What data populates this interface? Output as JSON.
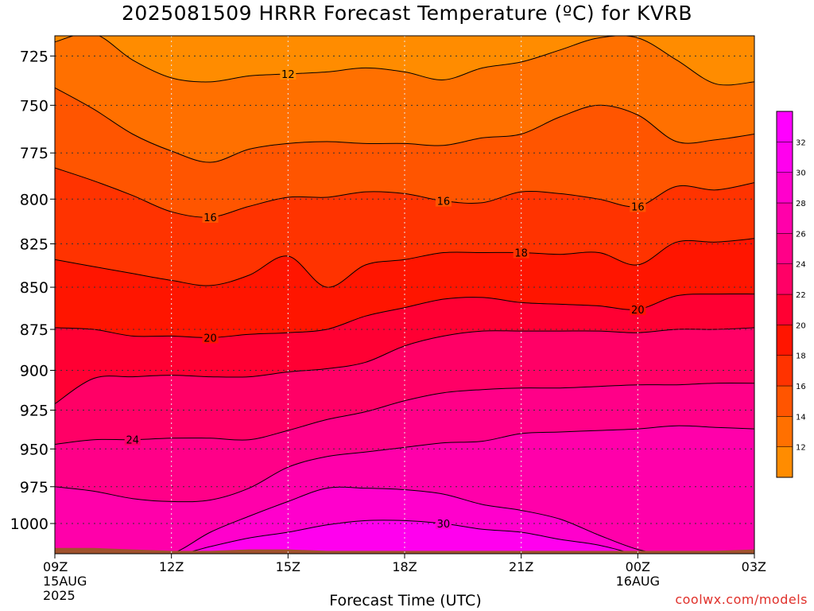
{
  "title": "2025081509 HRRR Forecast Temperature (ºC) for KVRB",
  "credit": "coolwx.com/models",
  "chart_data": {
    "type": "heatmap",
    "title": "2025081509 HRRR Forecast Temperature (ºC) for KVRB",
    "xlabel": "Forecast Time (UTC)",
    "ylabel": "",
    "x_hours": [
      0,
      1,
      2,
      3,
      4,
      5,
      6,
      7,
      8,
      9,
      10,
      11,
      12,
      13,
      14,
      15,
      16,
      17,
      18
    ],
    "x_range": [
      0,
      18
    ],
    "x_ticks": [
      {
        "hour": 0,
        "label": "09Z",
        "sub": [
          "15AUG",
          "2025"
        ]
      },
      {
        "hour": 3,
        "label": "12Z",
        "sub": []
      },
      {
        "hour": 6,
        "label": "15Z",
        "sub": []
      },
      {
        "hour": 9,
        "label": "18Z",
        "sub": []
      },
      {
        "hour": 12,
        "label": "21Z",
        "sub": []
      },
      {
        "hour": 15,
        "label": "00Z",
        "sub": [
          "16AUG"
        ]
      },
      {
        "hour": 18,
        "label": "03Z",
        "sub": []
      }
    ],
    "y_axis": {
      "units": "hPa",
      "range": [
        1021,
        715
      ],
      "ticks": [
        725,
        750,
        775,
        800,
        825,
        850,
        875,
        900,
        925,
        950,
        975,
        1000
      ],
      "log_scale": true
    },
    "grid": true,
    "surface_pressure": [
      1017,
      1017,
      1018,
      1019,
      1019,
      1018,
      1018,
      1019,
      1019,
      1019,
      1019,
      1019,
      1019,
      1019,
      1019,
      1019,
      1019,
      1019,
      1018
    ],
    "contour_levels": [
      12,
      14,
      16,
      18,
      20,
      22,
      24,
      26,
      28,
      30
    ],
    "contours": [
      {
        "level": 30,
        "p": [
          1038,
          1032,
          1027,
          1023,
          1016,
          1010,
          1006,
          1001,
          998,
          998,
          1000,
          1004,
          1006,
          1011,
          1015,
          1022,
          1030,
          1035,
          1040
        ]
      },
      {
        "level": 28,
        "p": [
          1030,
          1026,
          1023,
          1021,
          1006,
          995,
          985,
          976,
          976,
          977,
          980,
          987,
          991,
          997,
          1008,
          1018,
          1023,
          1028,
          1033
        ]
      },
      {
        "level": 26,
        "p": [
          975,
          978,
          983,
          985,
          984,
          976,
          962,
          955,
          952,
          949,
          946,
          945,
          940,
          939,
          938,
          937,
          935,
          936,
          937
        ]
      },
      {
        "level": 24,
        "p": [
          947,
          944,
          944,
          943,
          943,
          944,
          938,
          931,
          926,
          919,
          914,
          912,
          911,
          911,
          910,
          909,
          909,
          908,
          908
        ]
      },
      {
        "level": 22,
        "p": [
          921,
          905,
          904,
          903,
          904,
          904,
          901,
          899,
          895,
          885,
          879,
          876,
          876,
          876,
          876,
          877,
          875,
          875,
          874
        ]
      },
      {
        "level": 20,
        "p": [
          874,
          875,
          879,
          879,
          880,
          878,
          877,
          875,
          867,
          862,
          857,
          856,
          859,
          860,
          861,
          863,
          855,
          854,
          854
        ]
      },
      {
        "level": 18,
        "p": [
          834,
          838,
          842,
          846,
          849,
          843,
          832,
          850,
          837,
          834,
          830,
          830,
          830,
          831,
          830,
          837,
          824,
          824,
          822
        ]
      },
      {
        "level": 16,
        "p": [
          783,
          790,
          798,
          807,
          810,
          804,
          799,
          799,
          796,
          797,
          801,
          802,
          796,
          797,
          800,
          804,
          793,
          795,
          791
        ]
      },
      {
        "level": 14,
        "p": [
          741,
          752,
          765,
          774,
          780,
          773,
          770,
          769,
          770,
          770,
          771,
          767,
          765,
          756,
          750,
          755,
          769,
          768,
          765
        ]
      },
      {
        "level": 12,
        "p": [
          718,
          714,
          727,
          736,
          738,
          735,
          734,
          733,
          731,
          733,
          737,
          731,
          728,
          722,
          716,
          716,
          727,
          739,
          738
        ]
      }
    ],
    "contour_labels": [
      {
        "level": 30,
        "text": "30",
        "hour": 10.0
      },
      {
        "level": 24,
        "text": "24",
        "hour": 2.0
      },
      {
        "level": 20,
        "text": "20",
        "hour": 4.0
      },
      {
        "level": 20,
        "text": "20",
        "hour": 15.0
      },
      {
        "level": 18,
        "text": "18",
        "hour": 12.0
      },
      {
        "level": 16,
        "text": "16",
        "hour": 4.0
      },
      {
        "level": 16,
        "text": "16",
        "hour": 10.0
      },
      {
        "level": 16,
        "text": "16",
        "hour": 15.0
      },
      {
        "level": 12,
        "text": "12",
        "hour": 6.0
      }
    ],
    "colorbar": {
      "bands": [
        {
          "max": 12,
          "color": "#ff8c00"
        },
        {
          "max": 14,
          "color": "#ff7000"
        },
        {
          "max": 16,
          "color": "#ff5500"
        },
        {
          "max": 18,
          "color": "#ff3300"
        },
        {
          "max": 20,
          "color": "#ff1500"
        },
        {
          "max": 22,
          "color": "#ff0033"
        },
        {
          "max": 24,
          "color": "#ff0066"
        },
        {
          "max": 26,
          "color": "#ff0088"
        },
        {
          "max": 28,
          "color": "#ff00aa"
        },
        {
          "max": 30,
          "color": "#ff00cc"
        },
        {
          "max": 32,
          "color": "#ff00ee"
        },
        {
          "max": 34,
          "color": "#ff00ff"
        }
      ],
      "tick_labels": [
        "12",
        "14",
        "16",
        "18",
        "20",
        "22",
        "24",
        "26",
        "28",
        "30",
        "32"
      ]
    },
    "ground_color": "#a0522d"
  }
}
